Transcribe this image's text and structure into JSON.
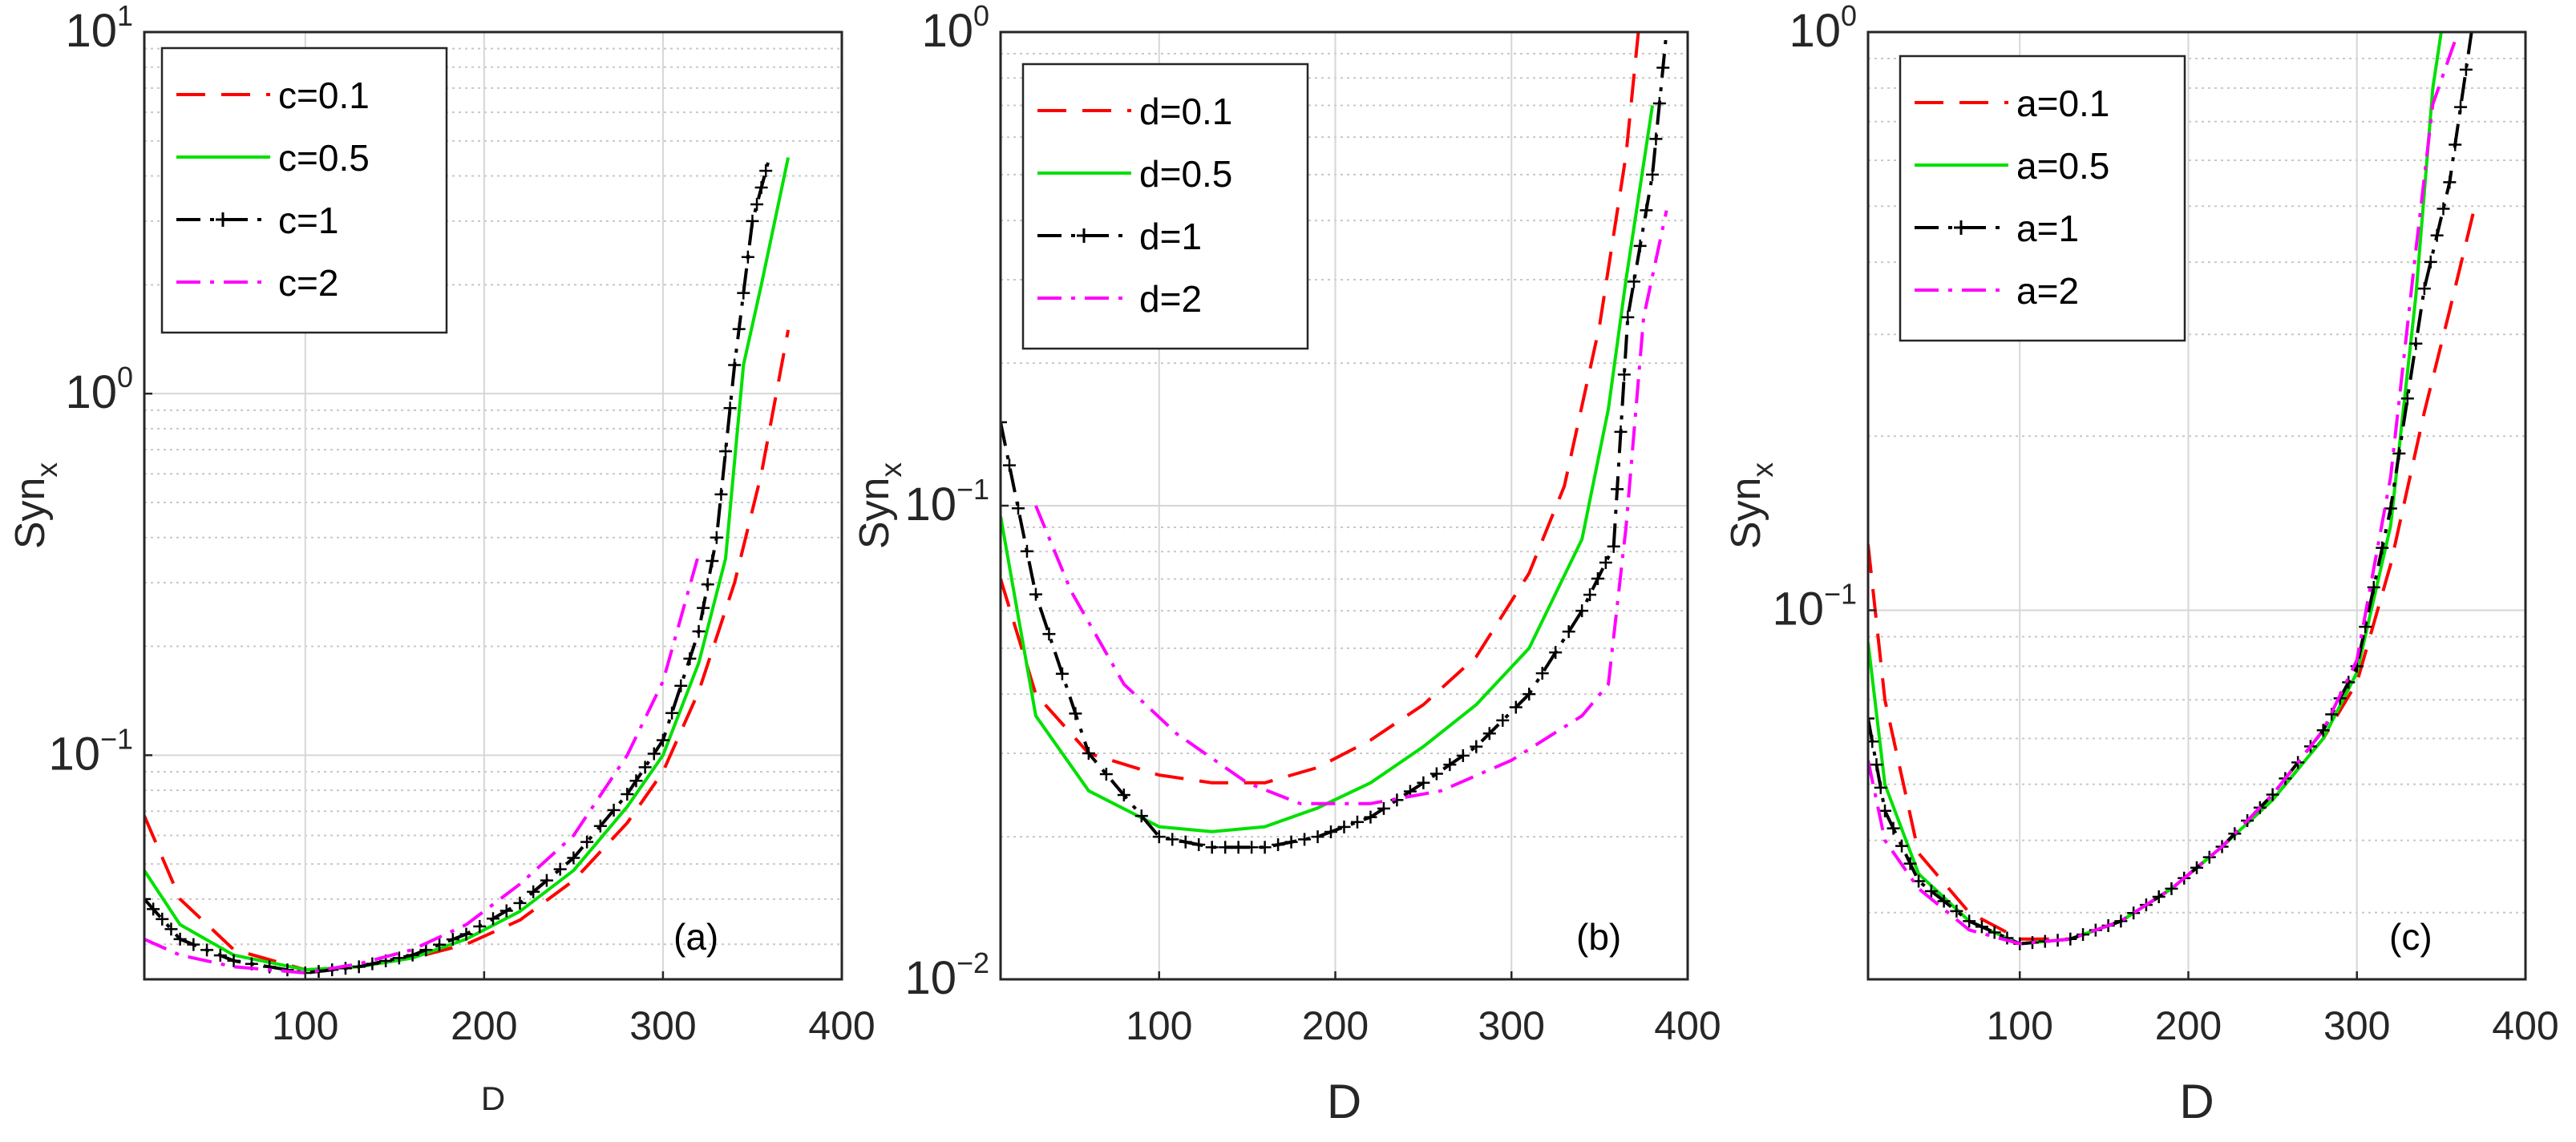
{
  "chart_data": [
    {
      "type": "line",
      "panel": "(a)",
      "xlabel": "D",
      "ylabel": "Syn",
      "ylabel_sub": "x",
      "yscale": "log",
      "xlim": [
        10,
        400
      ],
      "ylim": [
        0.024,
        10
      ],
      "xticks": [
        100,
        200,
        300,
        400
      ],
      "yticks": [
        {
          "base": "10",
          "exp": "1",
          "value": 10
        },
        {
          "base": "10",
          "exp": "0",
          "value": 1
        },
        {
          "base": "10",
          "exp": "−1",
          "value": 0.1
        }
      ],
      "grid": true,
      "legend_position": "top-left",
      "series": [
        {
          "name": "c=0.1",
          "color": "#ff0000",
          "style": "dashed",
          "x": [
            10,
            30,
            60,
            100,
            130,
            160,
            190,
            220,
            250,
            280,
            300,
            320,
            340,
            355,
            370
          ],
          "y": [
            0.068,
            0.04,
            0.029,
            0.0255,
            0.026,
            0.0275,
            0.03,
            0.035,
            0.045,
            0.065,
            0.09,
            0.15,
            0.3,
            0.6,
            1.5
          ]
        },
        {
          "name": "c=0.5",
          "color": "#00e000",
          "style": "solid",
          "x": [
            10,
            30,
            60,
            100,
            130,
            160,
            190,
            220,
            250,
            280,
            300,
            320,
            335,
            345,
            355,
            370
          ],
          "y": [
            0.048,
            0.034,
            0.028,
            0.0255,
            0.026,
            0.0275,
            0.031,
            0.037,
            0.048,
            0.072,
            0.1,
            0.18,
            0.35,
            1.2,
            2.0,
            4.5
          ]
        },
        {
          "name": "c=1",
          "color": "#000000",
          "style": "dashdot-plus",
          "x": [
            10,
            30,
            60,
            100,
            130,
            160,
            190,
            220,
            250,
            280,
            300,
            320,
            330,
            340,
            350,
            360
          ],
          "y": [
            0.04,
            0.031,
            0.027,
            0.025,
            0.026,
            0.028,
            0.032,
            0.039,
            0.052,
            0.078,
            0.11,
            0.22,
            0.4,
            1.2,
            3.0,
            4.6
          ]
        },
        {
          "name": "c=2",
          "color": "#ff00ff",
          "style": "dashdot",
          "x": [
            10,
            30,
            60,
            100,
            130,
            160,
            190,
            220,
            250,
            280,
            300,
            320
          ],
          "y": [
            0.031,
            0.028,
            0.026,
            0.025,
            0.0265,
            0.029,
            0.034,
            0.044,
            0.06,
            0.1,
            0.16,
            0.36
          ]
        }
      ]
    },
    {
      "type": "line",
      "panel": "(b)",
      "xlabel": "D",
      "ylabel": "Syn",
      "ylabel_sub": "x",
      "yscale": "log",
      "xlim": [
        10,
        400
      ],
      "ylim": [
        0.01,
        1
      ],
      "xticks": [
        100,
        200,
        300,
        400
      ],
      "yticks": [
        {
          "base": "10",
          "exp": "0",
          "value": 1
        },
        {
          "base": "10",
          "exp": "−1",
          "value": 0.1
        },
        {
          "base": "10",
          "exp": "−2",
          "value": 0.01
        }
      ],
      "grid": true,
      "legend_position": "top-left",
      "series": [
        {
          "name": "d=0.1",
          "color": "#ff0000",
          "style": "dashed",
          "x": [
            10,
            30,
            60,
            100,
            130,
            160,
            190,
            220,
            250,
            280,
            310,
            330,
            350,
            365,
            372
          ],
          "y": [
            0.07,
            0.04,
            0.03,
            0.027,
            0.026,
            0.026,
            0.028,
            0.032,
            0.038,
            0.048,
            0.072,
            0.11,
            0.24,
            0.55,
            1.0
          ]
        },
        {
          "name": "d=0.5",
          "color": "#00e000",
          "style": "solid",
          "x": [
            10,
            30,
            60,
            100,
            130,
            160,
            190,
            220,
            250,
            280,
            310,
            340,
            355,
            365,
            380
          ],
          "y": [
            0.095,
            0.036,
            0.025,
            0.021,
            0.0205,
            0.021,
            0.023,
            0.026,
            0.031,
            0.038,
            0.05,
            0.085,
            0.16,
            0.3,
            0.7
          ]
        },
        {
          "name": "d=1",
          "color": "#000000",
          "style": "dashdot-plus",
          "x": [
            10,
            30,
            60,
            100,
            130,
            160,
            190,
            220,
            250,
            280,
            310,
            340,
            358,
            366,
            380,
            388
          ],
          "y": [
            0.15,
            0.065,
            0.03,
            0.02,
            0.019,
            0.019,
            0.02,
            0.022,
            0.026,
            0.031,
            0.04,
            0.06,
            0.082,
            0.25,
            0.5,
            1.0
          ]
        },
        {
          "name": "d=2",
          "color": "#ff00ff",
          "style": "dashdot",
          "x": [
            30,
            50,
            80,
            110,
            150,
            180,
            220,
            260,
            300,
            340,
            355,
            365,
            375,
            388
          ],
          "y": [
            0.1,
            0.066,
            0.042,
            0.033,
            0.026,
            0.0235,
            0.0235,
            0.025,
            0.029,
            0.036,
            0.042,
            0.09,
            0.25,
            0.42
          ]
        }
      ]
    },
    {
      "type": "line",
      "panel": "(c)",
      "xlabel": "D",
      "ylabel": "Syn",
      "ylabel_sub": "x",
      "yscale": "log",
      "xlim": [
        10,
        400
      ],
      "ylim": [
        0.023,
        1
      ],
      "xticks": [
        100,
        200,
        300,
        400
      ],
      "yticks": [
        {
          "base": "10",
          "exp": "0",
          "value": 1
        },
        {
          "base": "10",
          "exp": "−1",
          "value": 0.1
        }
      ],
      "grid": true,
      "legend_position": "top-left",
      "series": [
        {
          "name": "a=0.1",
          "color": "#ff0000",
          "style": "dashed",
          "x": [
            10,
            20,
            40,
            70,
            100,
            130,
            160,
            190,
            220,
            250,
            280,
            300,
            320,
            340,
            355,
            370
          ],
          "y": [
            0.13,
            0.07,
            0.038,
            0.03,
            0.027,
            0.027,
            0.029,
            0.033,
            0.039,
            0.047,
            0.06,
            0.075,
            0.12,
            0.22,
            0.33,
            0.5
          ]
        },
        {
          "name": "a=0.5",
          "color": "#00e000",
          "style": "solid",
          "x": [
            10,
            20,
            40,
            70,
            100,
            130,
            160,
            190,
            220,
            250,
            280,
            300,
            320,
            335,
            345,
            350
          ],
          "y": [
            0.088,
            0.05,
            0.035,
            0.029,
            0.0265,
            0.027,
            0.029,
            0.033,
            0.039,
            0.047,
            0.06,
            0.078,
            0.14,
            0.35,
            0.8,
            1.0
          ]
        },
        {
          "name": "a=1",
          "color": "#000000",
          "style": "dashdot-plus",
          "x": [
            10,
            20,
            40,
            70,
            100,
            130,
            160,
            190,
            220,
            250,
            280,
            300,
            320,
            340,
            355,
            368
          ],
          "y": [
            0.065,
            0.045,
            0.034,
            0.029,
            0.0265,
            0.027,
            0.029,
            0.033,
            0.039,
            0.048,
            0.062,
            0.08,
            0.15,
            0.36,
            0.55,
            1.0
          ]
        },
        {
          "name": "a=2",
          "color": "#ff00ff",
          "style": "dashdot",
          "x": [
            10,
            20,
            40,
            70,
            100,
            130,
            160,
            190,
            220,
            250,
            280,
            300,
            320,
            335,
            345,
            360
          ],
          "y": [
            0.055,
            0.04,
            0.033,
            0.028,
            0.0265,
            0.027,
            0.029,
            0.033,
            0.039,
            0.048,
            0.062,
            0.082,
            0.17,
            0.42,
            0.75,
            1.0
          ]
        }
      ]
    }
  ]
}
